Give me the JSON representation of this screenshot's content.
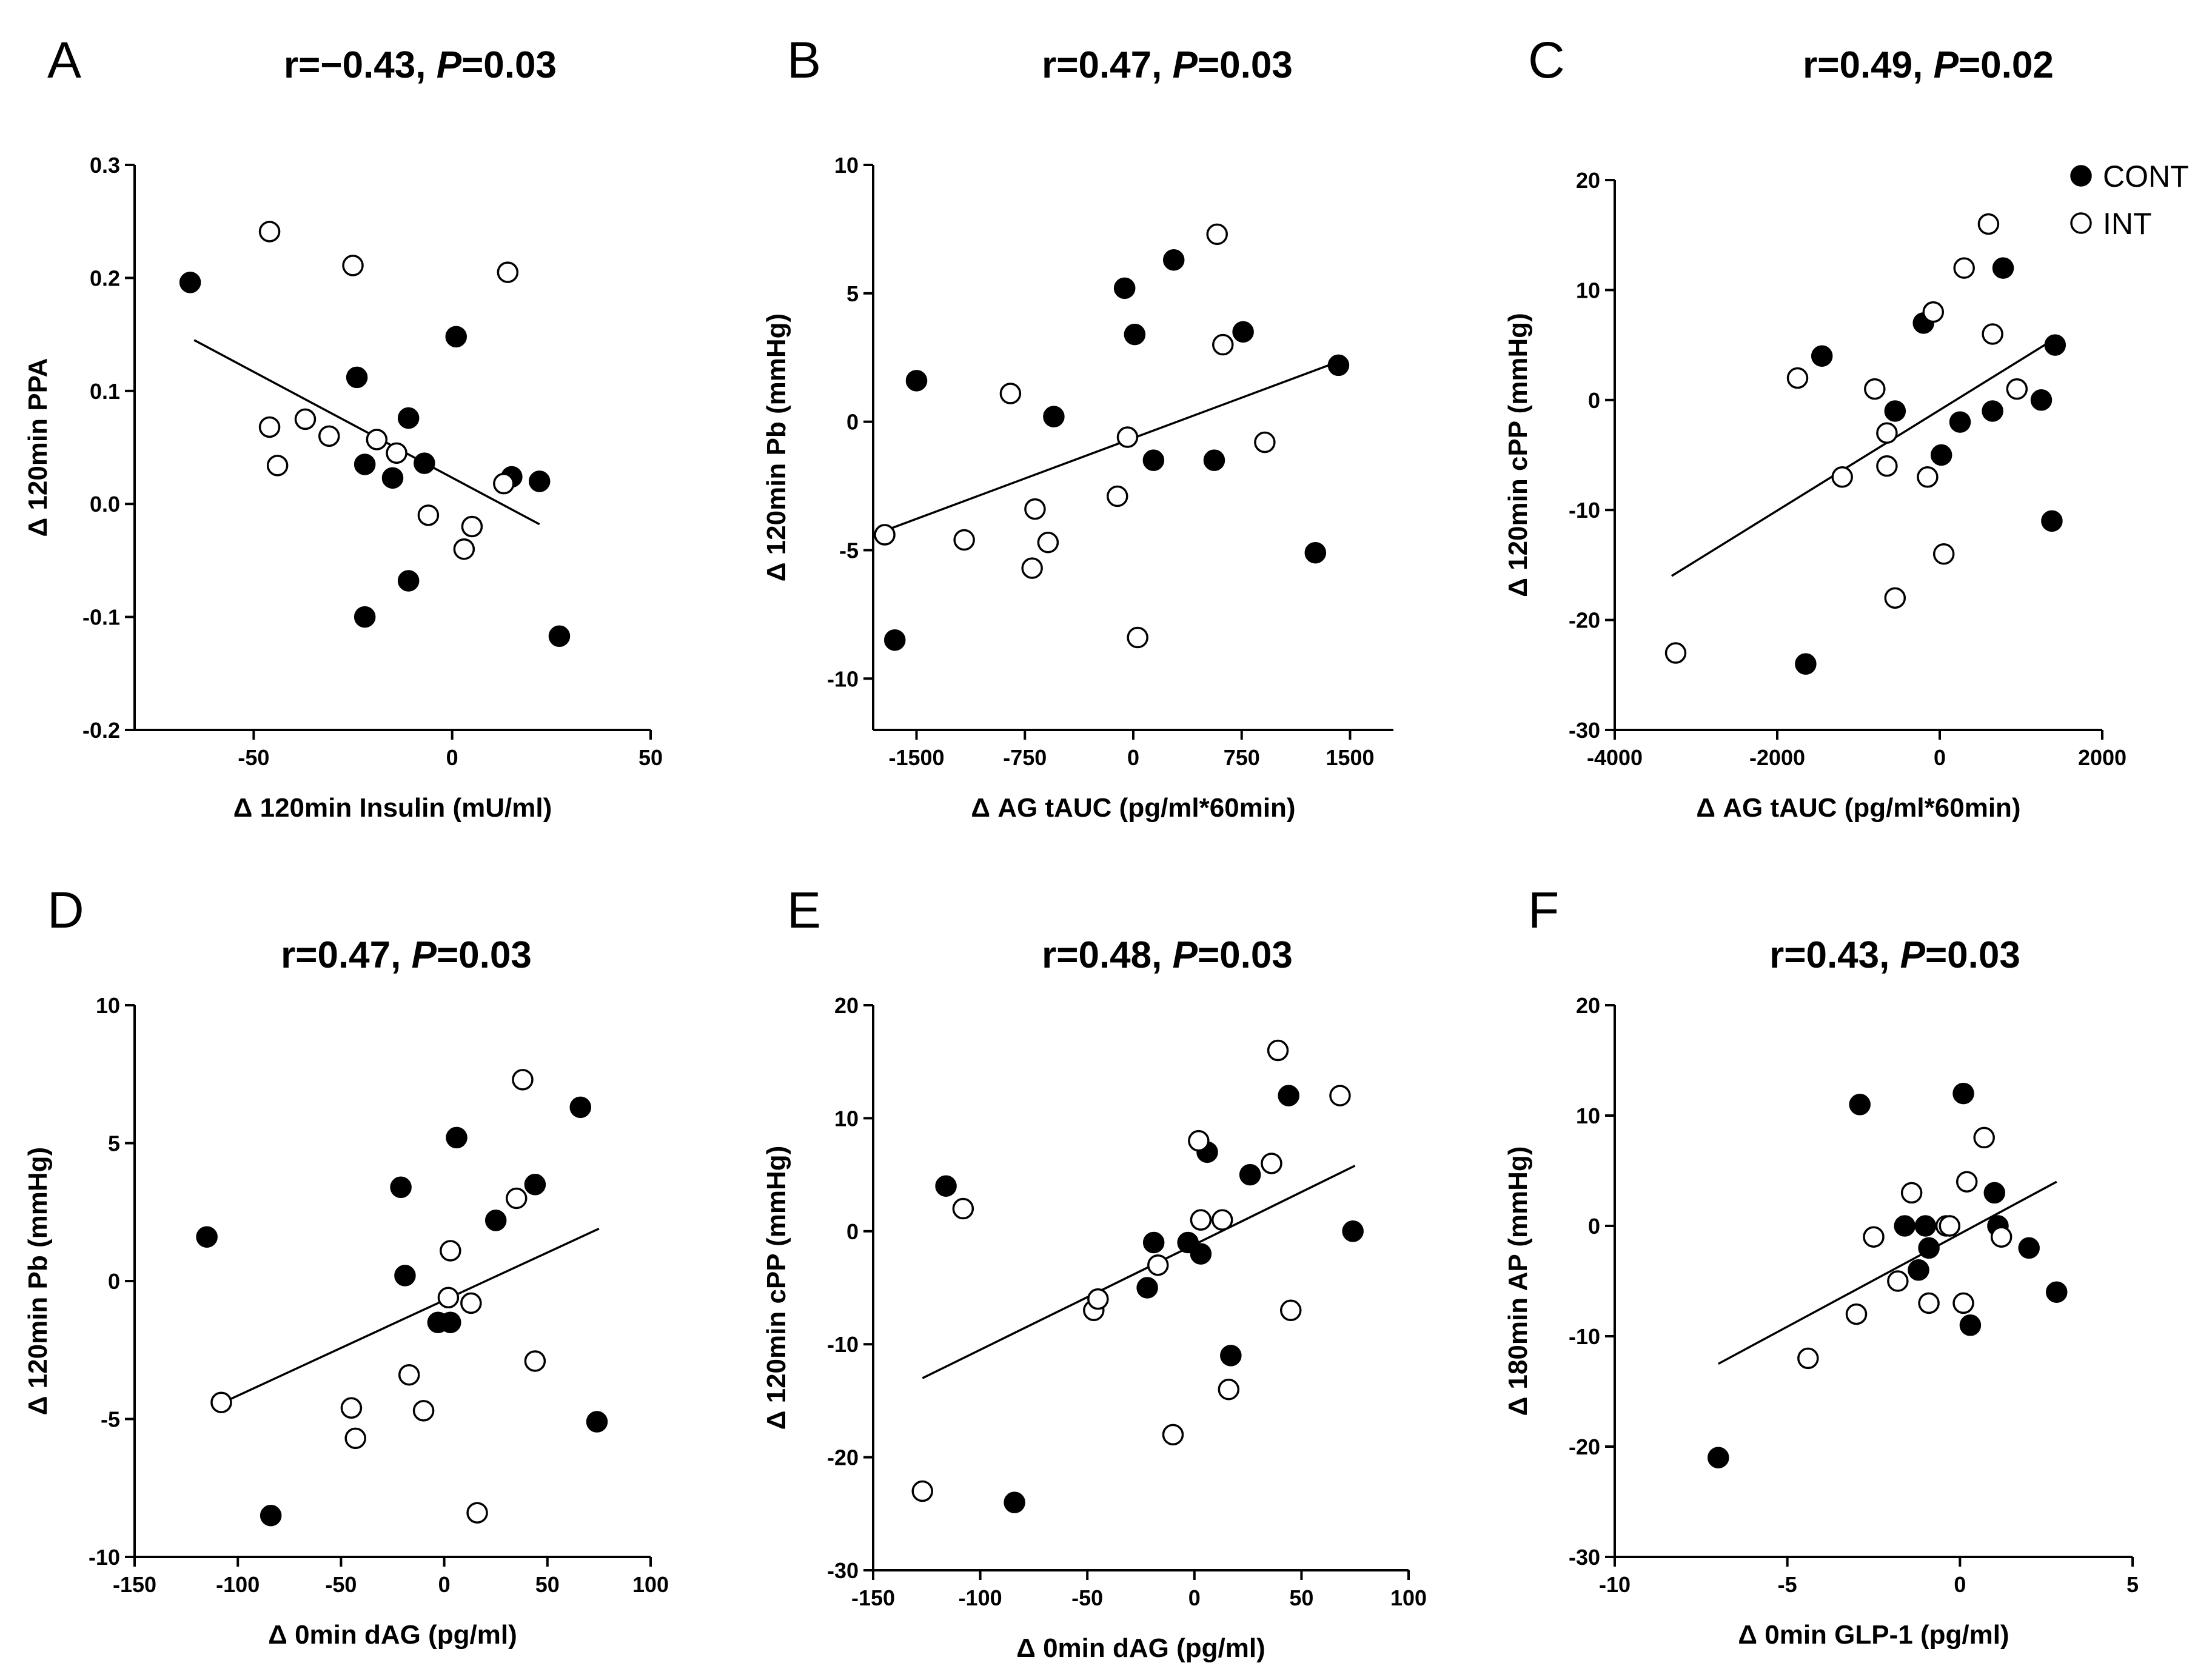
{
  "legend": {
    "position": "top-right",
    "items": [
      {
        "label": "CONT",
        "filled": true
      },
      {
        "label": "INT",
        "filled": false
      }
    ]
  },
  "chart_data": [
    {
      "type": "scatter",
      "panel": "A",
      "title_prefix": "r=−0.43, ",
      "title_p": "P",
      "title_suffix": "=0.03",
      "xlabel": "Δ 120min Insulin (mU/ml)",
      "ylabel": "Δ 120min PPA",
      "xlim": [
        -80,
        50
      ],
      "ylim": [
        -0.2,
        0.3
      ],
      "xticks": [
        -50,
        0,
        50
      ],
      "xtick_labels": [
        "-50",
        "0",
        "50"
      ],
      "yticks": [
        -0.2,
        -0.1,
        0.0,
        0.1,
        0.2,
        0.3
      ],
      "ytick_labels": [
        "-0.2",
        "-0.1",
        "0.0",
        "0.1",
        "0.2",
        "0.3"
      ],
      "fit": [
        [
          -65,
          0.145
        ],
        [
          22,
          -0.018
        ]
      ],
      "series": [
        {
          "name": "CONT",
          "points": [
            [
              -66,
              0.196
            ],
            [
              -24,
              0.112
            ],
            [
              -22,
              0.035
            ],
            [
              -15,
              0.023
            ],
            [
              -11,
              0.076
            ],
            [
              -11,
              -0.068
            ],
            [
              -22,
              -0.1
            ],
            [
              -7,
              0.036
            ],
            [
              1,
              0.148
            ],
            [
              15,
              0.024
            ],
            [
              22,
              0.02
            ],
            [
              27,
              -0.117
            ]
          ]
        },
        {
          "name": "INT",
          "points": [
            [
              -46,
              0.241
            ],
            [
              -25,
              0.211
            ],
            [
              14,
              0.205
            ],
            [
              -37,
              0.075
            ],
            [
              -46,
              0.068
            ],
            [
              -31,
              0.06
            ],
            [
              -19,
              0.057
            ],
            [
              -14,
              0.045
            ],
            [
              -44,
              0.034
            ],
            [
              -6,
              -0.01
            ],
            [
              13,
              0.018
            ],
            [
              5,
              -0.02
            ],
            [
              3,
              -0.04
            ]
          ]
        }
      ]
    },
    {
      "type": "scatter",
      "panel": "B",
      "title_prefix": "r=0.47, ",
      "title_p": "P",
      "title_suffix": "=0.03",
      "xlabel": "Δ AG tAUC (pg/ml*60min)",
      "ylabel": "Δ 120min Pb (mmHg)",
      "xlim": [
        -1800,
        1800
      ],
      "ylim": [
        -12,
        10
      ],
      "xticks": [
        -1500,
        -750,
        0,
        750,
        1500
      ],
      "xtick_labels": [
        "-1500",
        "-750",
        "0",
        "750",
        "1500"
      ],
      "yticks": [
        -10,
        -5,
        0,
        5,
        10
      ],
      "ytick_labels": [
        "-10",
        "-5",
        "0",
        "5",
        "10"
      ],
      "fit": [
        [
          -1700,
          -4.2
        ],
        [
          1400,
          2.3
        ]
      ],
      "series": [
        {
          "name": "CONT",
          "points": [
            [
              -1500,
              1.6
            ],
            [
              -1650,
              -8.5
            ],
            [
              -550,
              0.2
            ],
            [
              -60,
              5.2
            ],
            [
              10,
              3.4
            ],
            [
              140,
              -1.5
            ],
            [
              280,
              6.3
            ],
            [
              560,
              -1.5
            ],
            [
              760,
              3.5
            ],
            [
              1260,
              -5.1
            ],
            [
              1420,
              2.2
            ]
          ]
        },
        {
          "name": "INT",
          "points": [
            [
              -1720,
              -4.4
            ],
            [
              -1170,
              -4.6
            ],
            [
              -850,
              1.1
            ],
            [
              -680,
              -3.4
            ],
            [
              -700,
              -5.7
            ],
            [
              -590,
              -4.7
            ],
            [
              -110,
              -2.9
            ],
            [
              -40,
              -0.6
            ],
            [
              30,
              -8.4
            ],
            [
              580,
              7.3
            ],
            [
              620,
              3.0
            ],
            [
              910,
              -0.8
            ]
          ]
        }
      ]
    },
    {
      "type": "scatter",
      "panel": "C",
      "title_prefix": "r=0.49, ",
      "title_p": "P",
      "title_suffix": "=0.02",
      "xlabel": "Δ AG tAUC (pg/ml*60min)",
      "ylabel": "Δ 120min cPP (mmHg)",
      "xlim": [
        -4000,
        2000
      ],
      "ylim": [
        -30,
        20
      ],
      "xticks": [
        -4000,
        -2000,
        0,
        2000
      ],
      "xtick_labels": [
        "-4000",
        "-2000",
        "0",
        "2000"
      ],
      "yticks": [
        -30,
        -20,
        -10,
        0,
        10,
        20
      ],
      "ytick_labels": [
        "-30",
        "-20",
        "-10",
        "0",
        "10",
        "20"
      ],
      "fit": [
        [
          -3300,
          -16.0
        ],
        [
          1400,
          5.5
        ]
      ],
      "series": [
        {
          "name": "CONT",
          "points": [
            [
              -1650,
              -24
            ],
            [
              -1450,
              4
            ],
            [
              -550,
              -1
            ],
            [
              -200,
              7
            ],
            [
              20,
              -5
            ],
            [
              250,
              -2
            ],
            [
              650,
              -1
            ],
            [
              780,
              12
            ],
            [
              1250,
              0
            ],
            [
              1380,
              -11
            ],
            [
              1420,
              5
            ]
          ]
        },
        {
          "name": "INT",
          "points": [
            [
              -3250,
              -23
            ],
            [
              -1750,
              2
            ],
            [
              -1200,
              -7
            ],
            [
              -800,
              1
            ],
            [
              -650,
              -3
            ],
            [
              -650,
              -6
            ],
            [
              -550,
              -18
            ],
            [
              -150,
              -7
            ],
            [
              -80,
              8
            ],
            [
              50,
              -14
            ],
            [
              300,
              12
            ],
            [
              600,
              16
            ],
            [
              650,
              6
            ],
            [
              950,
              1
            ]
          ]
        }
      ]
    },
    {
      "type": "scatter",
      "panel": "D",
      "title_prefix": "r=0.47, ",
      "title_p": "P",
      "title_suffix": "=0.03",
      "xlabel": "Δ 0min dAG  (pg/ml)",
      "ylabel": "Δ 120min Pb (mmHg)",
      "xlim": [
        -150,
        100
      ],
      "ylim": [
        -10,
        10
      ],
      "xticks": [
        -150,
        -100,
        -50,
        0,
        50,
        100
      ],
      "xtick_labels": [
        "-150",
        "-100",
        "-50",
        "0",
        "50",
        "100"
      ],
      "yticks": [
        -10,
        -5,
        0,
        5,
        10
      ],
      "ytick_labels": [
        "-10",
        "-5",
        "0",
        "5",
        "10"
      ],
      "fit": [
        [
          -110,
          -4.5
        ],
        [
          75,
          1.9
        ]
      ],
      "series": [
        {
          "name": "CONT",
          "points": [
            [
              -115,
              1.6
            ],
            [
              -84,
              -8.5
            ],
            [
              -21,
              3.4
            ],
            [
              -19,
              0.2
            ],
            [
              -3,
              -1.5
            ],
            [
              3,
              -1.5
            ],
            [
              6,
              5.2
            ],
            [
              25,
              2.2
            ],
            [
              44,
              3.5
            ],
            [
              66,
              6.3
            ],
            [
              74,
              -5.1
            ]
          ]
        },
        {
          "name": "INT",
          "points": [
            [
              -108,
              -4.4
            ],
            [
              -45,
              -4.6
            ],
            [
              -43,
              -5.7
            ],
            [
              -17,
              -3.4
            ],
            [
              -10,
              -4.7
            ],
            [
              2,
              -0.6
            ],
            [
              3,
              1.1
            ],
            [
              13,
              -0.8
            ],
            [
              16,
              -8.4
            ],
            [
              35,
              3.0
            ],
            [
              38,
              7.3
            ],
            [
              44,
              -2.9
            ]
          ]
        }
      ]
    },
    {
      "type": "scatter",
      "panel": "E",
      "title_prefix": "r=0.48, ",
      "title_p": "P",
      "title_suffix": "=0.03",
      "xlabel": "Δ 0min dAG (pg/ml)",
      "ylabel": "Δ 120min cPP (mmHg)",
      "xlim": [
        -150,
        100
      ],
      "ylim": [
        -30,
        20
      ],
      "xticks": [
        -150,
        -100,
        -50,
        0,
        50,
        100
      ],
      "xtick_labels": [
        "-150",
        "-100",
        "-50",
        "0",
        "50",
        "100"
      ],
      "yticks": [
        -30,
        -20,
        -10,
        0,
        10,
        20
      ],
      "ytick_labels": [
        "-30",
        "-20",
        "-10",
        "0",
        "10",
        "20"
      ],
      "fit": [
        [
          -127,
          -13.0
        ],
        [
          75,
          5.8
        ]
      ],
      "series": [
        {
          "name": "CONT",
          "points": [
            [
              -116,
              4
            ],
            [
              -84,
              -24
            ],
            [
              -22,
              -5
            ],
            [
              -19,
              -1
            ],
            [
              -3,
              -1
            ],
            [
              3,
              -2
            ],
            [
              6,
              7
            ],
            [
              17,
              -11
            ],
            [
              26,
              5
            ],
            [
              44,
              12
            ],
            [
              74,
              0
            ]
          ]
        },
        {
          "name": "INT",
          "points": [
            [
              -127,
              -23
            ],
            [
              -108,
              2
            ],
            [
              -47,
              -7
            ],
            [
              -45,
              -6
            ],
            [
              -17,
              -3
            ],
            [
              -10,
              -18
            ],
            [
              2,
              8
            ],
            [
              3,
              1
            ],
            [
              13,
              1
            ],
            [
              16,
              -14
            ],
            [
              36,
              6
            ],
            [
              39,
              16
            ],
            [
              45,
              -7
            ],
            [
              68,
              12
            ]
          ]
        }
      ]
    },
    {
      "type": "scatter",
      "panel": "F",
      "title_prefix": "r=0.43, ",
      "title_p": "P",
      "title_suffix": "=0.03",
      "xlabel": "Δ 0min GLP-1 (pg/ml)",
      "ylabel": "Δ 180min AP (mmHg)",
      "xlim": [
        -10,
        5
      ],
      "ylim": [
        -30,
        20
      ],
      "xticks": [
        -10,
        -5,
        0,
        5
      ],
      "xtick_labels": [
        "-10",
        "-5",
        "0",
        "5"
      ],
      "yticks": [
        -30,
        -20,
        -10,
        0,
        10,
        20
      ],
      "ytick_labels": [
        "-30",
        "-20",
        "-10",
        "0",
        "10",
        "20"
      ],
      "fit": [
        [
          -7,
          -12.5
        ],
        [
          2.8,
          4.0
        ]
      ],
      "series": [
        {
          "name": "CONT",
          "points": [
            [
              -7,
              -21
            ],
            [
              -2.9,
              11
            ],
            [
              -1.6,
              0
            ],
            [
              -1.2,
              -4
            ],
            [
              -1,
              0
            ],
            [
              -0.9,
              -2
            ],
            [
              -0.3,
              0
            ],
            [
              0.1,
              12
            ],
            [
              0.3,
              -9
            ],
            [
              1.0,
              3
            ],
            [
              1.1,
              0
            ],
            [
              2,
              -2
            ],
            [
              2.8,
              -6
            ]
          ]
        },
        {
          "name": "INT",
          "points": [
            [
              -4.4,
              -12
            ],
            [
              -3.0,
              -8
            ],
            [
              -2.5,
              -1
            ],
            [
              -1.8,
              -5
            ],
            [
              -1.4,
              3
            ],
            [
              -0.9,
              -7
            ],
            [
              -0.4,
              0
            ],
            [
              -0.3,
              0
            ],
            [
              0.1,
              -7
            ],
            [
              0.2,
              4
            ],
            [
              0.7,
              8
            ],
            [
              1.2,
              -1
            ]
          ]
        }
      ]
    }
  ]
}
